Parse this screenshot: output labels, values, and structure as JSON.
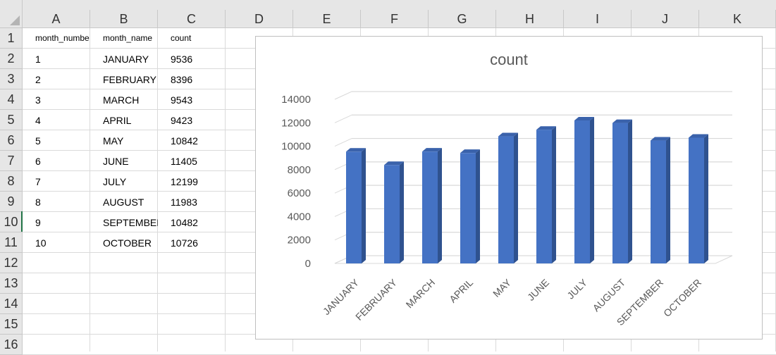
{
  "spreadsheet": {
    "columns": [
      "A",
      "B",
      "C",
      "D",
      "E",
      "F",
      "G",
      "H",
      "I",
      "J",
      "K"
    ],
    "rows": [
      "1",
      "2",
      "3",
      "4",
      "5",
      "6",
      "7",
      "8",
      "9",
      "10",
      "11",
      "12",
      "13",
      "14",
      "15",
      "16"
    ],
    "headers": [
      "month_number",
      "month_name",
      "count"
    ],
    "data": [
      [
        "1",
        "JANUARY",
        "9536"
      ],
      [
        "2",
        "FEBRUARY",
        "8396"
      ],
      [
        "3",
        "MARCH",
        "9543"
      ],
      [
        "4",
        "APRIL",
        "9423"
      ],
      [
        "5",
        "MAY",
        "10842"
      ],
      [
        "6",
        "JUNE",
        "11405"
      ],
      [
        "7",
        "JULY",
        "12199"
      ],
      [
        "8",
        "AUGUST",
        "11983"
      ],
      [
        "9",
        "SEPTEMBER",
        "10482"
      ],
      [
        "10",
        "OCTOBER",
        "10726"
      ]
    ]
  },
  "chart_data": {
    "type": "bar",
    "title": "count",
    "categories": [
      "JANUARY",
      "FEBRUARY",
      "MARCH",
      "APRIL",
      "MAY",
      "JUNE",
      "JULY",
      "AUGUST",
      "SEPTEMBER",
      "OCTOBER"
    ],
    "values": [
      9536,
      8396,
      9543,
      9423,
      10842,
      11405,
      12199,
      11983,
      10482,
      10726
    ],
    "yticks": [
      "0",
      "2000",
      "4000",
      "6000",
      "8000",
      "10000",
      "12000",
      "14000"
    ],
    "ylim": [
      0,
      14000
    ],
    "grid": true,
    "legend": "none",
    "bar_color": "#4472c4",
    "bar_side_color": "#2f528f",
    "bar_top_color": "#3a62ab"
  }
}
